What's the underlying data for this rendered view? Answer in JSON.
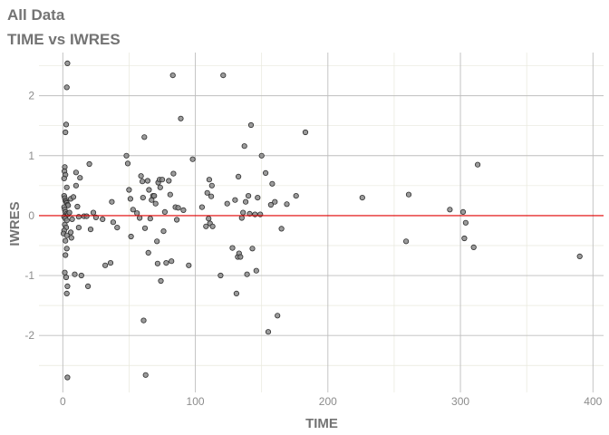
{
  "title": "All Data",
  "subtitle": "TIME vs IWRES",
  "colors": {
    "major_grid": "#bebebe",
    "minor_grid": "#e8e8dc",
    "point_fill": "#8a8a8a",
    "point_stroke": "#2e2e2e",
    "reference_line": "#e00000",
    "text": "#737373",
    "tick_text": "#8c8c8c"
  },
  "chart_data": {
    "type": "scatter",
    "xlabel": "TIME",
    "ylabel": "IWRES",
    "xlim": [
      -18,
      408
    ],
    "ylim": [
      -2.95,
      2.72
    ],
    "x_ticks": [
      0,
      100,
      200,
      300,
      400
    ],
    "y_ticks": [
      -2,
      -1,
      0,
      1,
      2
    ],
    "x_tick_labels": [
      "0",
      "100",
      "200",
      "300",
      "400"
    ],
    "y_tick_labels": [
      "-2",
      "-1",
      "0",
      "1",
      "2"
    ],
    "x_minor_ticks": [
      50,
      150,
      250,
      350
    ],
    "y_minor_ticks": [
      -2.5,
      -1.5,
      -0.5,
      0.5,
      1.5,
      2.5
    ],
    "grid": true,
    "reference_line": {
      "y": 0
    },
    "points": [
      [
        3.5,
        2.54
      ],
      [
        3.0,
        2.14
      ],
      [
        2.5,
        1.52
      ],
      [
        2.0,
        1.39
      ],
      [
        1.5,
        0.81
      ],
      [
        1.2,
        0.74
      ],
      [
        2.0,
        0.68
      ],
      [
        1.0,
        0.62
      ],
      [
        3.0,
        0.47
      ],
      [
        1.0,
        0.33
      ],
      [
        1.5,
        0.29
      ],
      [
        2.0,
        0.25
      ],
      [
        2.5,
        0.23
      ],
      [
        3.0,
        0.21
      ],
      [
        3.5,
        0.18
      ],
      [
        4.0,
        0.17
      ],
      [
        1.0,
        0.14
      ],
      [
        1.5,
        0.1
      ],
      [
        2.0,
        0.06
      ],
      [
        3.0,
        0.03
      ],
      [
        4.0,
        0.02
      ],
      [
        1.0,
        -0.02
      ],
      [
        2.0,
        -0.05
      ],
      [
        3.0,
        -0.08
      ],
      [
        1.5,
        -0.15
      ],
      [
        2.5,
        -0.2
      ],
      [
        1.0,
        -0.25
      ],
      [
        0.5,
        -0.3
      ],
      [
        3.0,
        -0.33
      ],
      [
        2.0,
        -0.42
      ],
      [
        3.0,
        -0.55
      ],
      [
        2.0,
        -0.66
      ],
      [
        1.5,
        -0.95
      ],
      [
        2.5,
        -1.03
      ],
      [
        3.5,
        -1.18
      ],
      [
        3.0,
        -1.3
      ],
      [
        3.5,
        -2.7
      ],
      [
        5.0,
        0.05
      ],
      [
        6.0,
        0.28
      ],
      [
        6.0,
        -0.28
      ],
      [
        6.5,
        -0.37
      ],
      [
        7.0,
        -0.06
      ],
      [
        8.0,
        0.31
      ],
      [
        9.0,
        -0.98
      ],
      [
        10.0,
        0.72
      ],
      [
        10.0,
        0.5
      ],
      [
        11.0,
        0.15
      ],
      [
        12.0,
        -0.2
      ],
      [
        12.0,
        -0.02
      ],
      [
        13.0,
        0.63
      ],
      [
        14.0,
        -1.0
      ],
      [
        16.0,
        -0.01
      ],
      [
        18.0,
        -0.01
      ],
      [
        19.0,
        -1.18
      ],
      [
        20.0,
        0.86
      ],
      [
        21.0,
        -0.23
      ],
      [
        23.0,
        0.05
      ],
      [
        25.0,
        -0.03
      ],
      [
        30.0,
        -0.06
      ],
      [
        32.0,
        -0.83
      ],
      [
        36.0,
        -0.79
      ],
      [
        37.0,
        0.23
      ],
      [
        38.0,
        -0.11
      ],
      [
        41.0,
        -0.2
      ],
      [
        48.0,
        1.0
      ],
      [
        49.0,
        0.87
      ],
      [
        50.0,
        0.43
      ],
      [
        51.0,
        0.28
      ],
      [
        51.5,
        -0.35
      ],
      [
        53.0,
        0.1
      ],
      [
        56.0,
        0.04
      ],
      [
        58.0,
        -0.04
      ],
      [
        59.0,
        0.66
      ],
      [
        60.0,
        0.57
      ],
      [
        60.5,
        0.3
      ],
      [
        61.0,
        -1.75
      ],
      [
        61.5,
        1.31
      ],
      [
        62.0,
        -0.21
      ],
      [
        62.5,
        -2.66
      ],
      [
        64.0,
        0.58
      ],
      [
        64.5,
        -0.62
      ],
      [
        65.0,
        0.43
      ],
      [
        66.0,
        -0.05
      ],
      [
        67.0,
        0.26
      ],
      [
        68.0,
        0.33
      ],
      [
        69.0,
        0.33
      ],
      [
        70.0,
        0.2
      ],
      [
        71.0,
        -0.43
      ],
      [
        71.5,
        -0.8
      ],
      [
        72.0,
        0.55
      ],
      [
        73.0,
        0.6
      ],
      [
        73.5,
        0.47
      ],
      [
        74.0,
        -1.09
      ],
      [
        75.0,
        0.6
      ],
      [
        76.0,
        -0.26
      ],
      [
        77.0,
        0.06
      ],
      [
        78.0,
        -0.79
      ],
      [
        80.0,
        0.58
      ],
      [
        81.0,
        0.35
      ],
      [
        82.0,
        -0.76
      ],
      [
        83.0,
        2.34
      ],
      [
        83.5,
        0.7
      ],
      [
        85.0,
        0.14
      ],
      [
        86.0,
        -0.07
      ],
      [
        87.0,
        0.13
      ],
      [
        89.0,
        1.62
      ],
      [
        91.0,
        0.09
      ],
      [
        95.0,
        -0.83
      ],
      [
        98.0,
        0.94
      ],
      [
        105.0,
        0.14
      ],
      [
        108.0,
        -0.18
      ],
      [
        109.0,
        0.38
      ],
      [
        110.0,
        -0.05
      ],
      [
        110.5,
        0.6
      ],
      [
        111.0,
        -0.13
      ],
      [
        112.0,
        0.32
      ],
      [
        112.5,
        0.5
      ],
      [
        113.0,
        -0.18
      ],
      [
        119.0,
        -1.0
      ],
      [
        121.0,
        2.34
      ],
      [
        124.0,
        0.2
      ],
      [
        128.0,
        -0.54
      ],
      [
        130.0,
        0.26
      ],
      [
        131.0,
        -1.3
      ],
      [
        132.0,
        -0.69
      ],
      [
        132.5,
        0.65
      ],
      [
        133.0,
        -0.63
      ],
      [
        134.0,
        -0.69
      ],
      [
        135.0,
        -0.04
      ],
      [
        136.0,
        0.05
      ],
      [
        137.0,
        1.16
      ],
      [
        138.0,
        0.23
      ],
      [
        139.0,
        -0.98
      ],
      [
        140.0,
        0.33
      ],
      [
        141.0,
        0.03
      ],
      [
        142.0,
        1.51
      ],
      [
        143.0,
        -0.55
      ],
      [
        145.0,
        0.02
      ],
      [
        146.0,
        -0.92
      ],
      [
        147.0,
        0.3
      ],
      [
        149.0,
        0.02
      ],
      [
        150.0,
        1.0
      ],
      [
        153.0,
        0.71
      ],
      [
        155.0,
        -1.94
      ],
      [
        157.0,
        0.18
      ],
      [
        158.0,
        0.53
      ],
      [
        160.0,
        0.23
      ],
      [
        162.0,
        -1.67
      ],
      [
        165.0,
        -0.22
      ],
      [
        169.0,
        0.19
      ],
      [
        176.0,
        0.33
      ],
      [
        183.0,
        1.39
      ],
      [
        226.0,
        0.3
      ],
      [
        259.0,
        -0.43
      ],
      [
        261.0,
        0.35
      ],
      [
        292.0,
        0.1
      ],
      [
        302.0,
        0.06
      ],
      [
        303.0,
        -0.38
      ],
      [
        304.0,
        -0.12
      ],
      [
        310.0,
        -0.53
      ],
      [
        313.0,
        0.85
      ],
      [
        390.0,
        -0.68
      ]
    ]
  }
}
